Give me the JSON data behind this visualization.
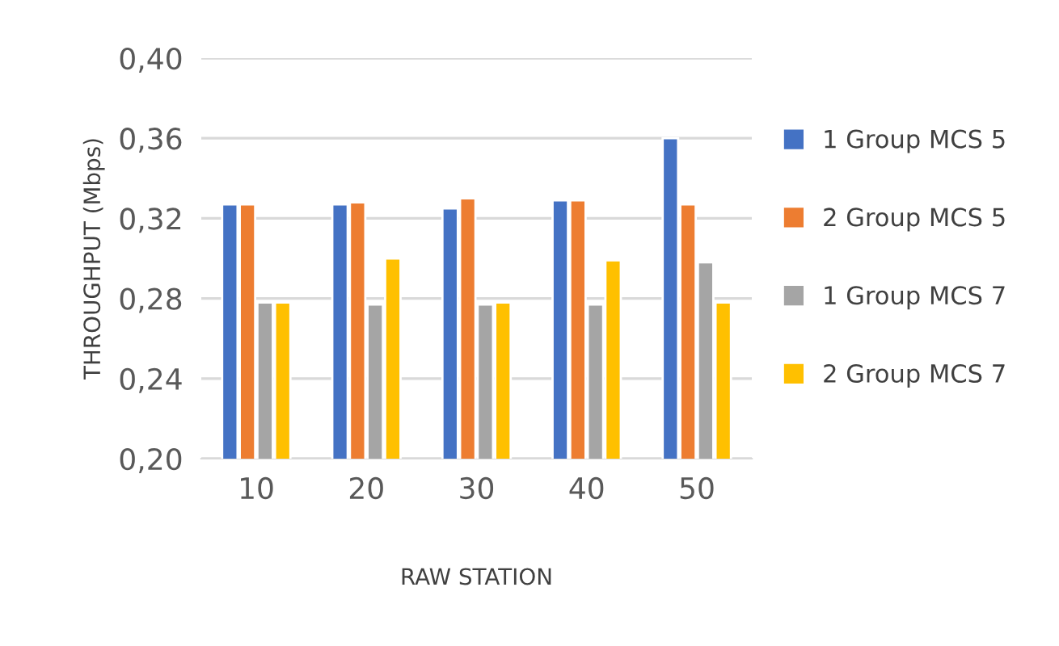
{
  "chart_data": {
    "type": "bar",
    "xlabel": "RAW STATION",
    "ylabel": "THROUGHPUT (Mbps)",
    "categories": [
      "10",
      "20",
      "30",
      "40",
      "50"
    ],
    "series": [
      {
        "name": "1 Group MCS 5",
        "color": "#4472c4",
        "values": [
          0.327,
          0.327,
          0.325,
          0.329,
          0.36
        ]
      },
      {
        "name": "2 Group MCS 5",
        "color": "#ed7d31",
        "values": [
          0.327,
          0.328,
          0.33,
          0.329,
          0.327
        ]
      },
      {
        "name": "1 Group MCS 7",
        "color": "#a5a5a5",
        "values": [
          0.278,
          0.277,
          0.277,
          0.277,
          0.298
        ]
      },
      {
        "name": "2 Group MCS 7",
        "color": "#ffc000",
        "values": [
          0.278,
          0.3,
          0.278,
          0.299,
          0.278
        ]
      }
    ],
    "ylim": [
      0.2,
      0.4
    ],
    "yticks": [
      {
        "value": 0.2,
        "label": "0,20"
      },
      {
        "value": 0.24,
        "label": "0,24"
      },
      {
        "value": 0.28,
        "label": "0,28"
      },
      {
        "value": 0.32,
        "label": "0,32"
      },
      {
        "value": 0.36,
        "label": "0,36"
      },
      {
        "value": 0.4,
        "label": "0,40"
      }
    ],
    "grid": "y",
    "legend": "right"
  }
}
